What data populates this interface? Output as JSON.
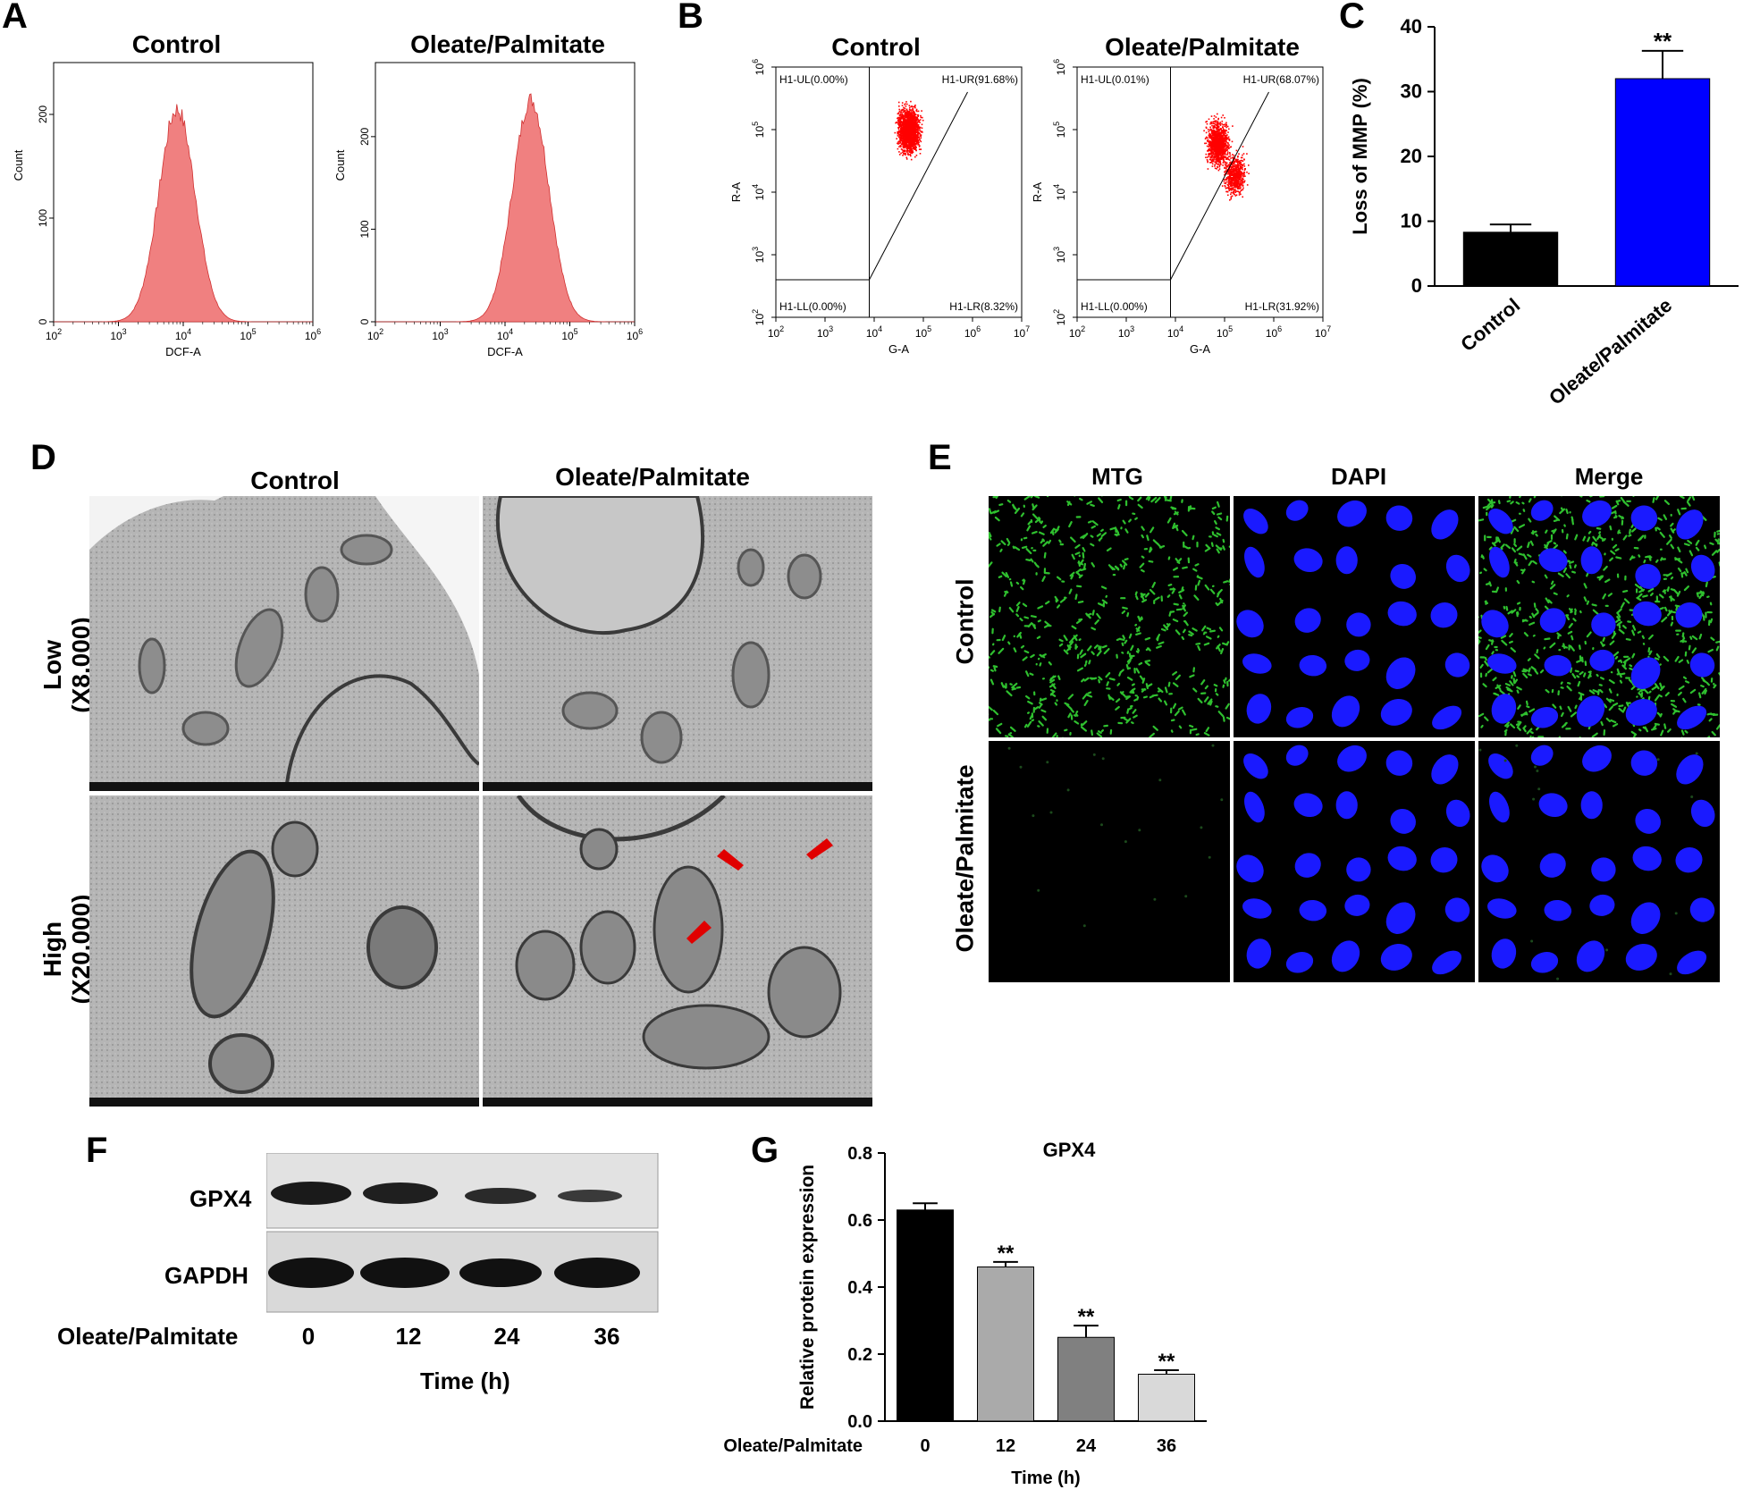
{
  "panels": {
    "A": {
      "label": "A",
      "plots": [
        {
          "title": "Control",
          "xlabel": "DCF-A",
          "ylabel": "Count"
        },
        {
          "title": "Oleate/Palmitate",
          "xlabel": "DCF-A",
          "ylabel": "Count"
        }
      ]
    },
    "B": {
      "label": "B",
      "plots": [
        {
          "title": "Control",
          "xlabel": "G-A",
          "ylabel": "R-A",
          "ul": "H1-UL(0.00%)",
          "ur": "H1-UR(91.68%)",
          "ll": "H1-LL(0.00%)",
          "lr": "H1-LR(8.32%)"
        },
        {
          "title": "Oleate/Palmitate",
          "xlabel": "G-A",
          "ylabel": "R-A",
          "ul": "H1-UL(0.01%)",
          "ur": "H1-UR(68.07%)",
          "ll": "H1-LL(0.00%)",
          "lr": "H1-LR(31.92%)"
        }
      ]
    },
    "C": {
      "label": "C"
    },
    "D": {
      "label": "D",
      "col_titles": [
        "Control",
        "Oleate/Palmitate"
      ],
      "row_titles": [
        [
          "Low",
          "(X8,000)"
        ],
        [
          "High",
          "(X20,000)"
        ]
      ]
    },
    "E": {
      "label": "E",
      "col_titles": [
        "MTG",
        "DAPI",
        "Merge"
      ],
      "row_titles": [
        "Control",
        "Oleate/Palmitate"
      ]
    },
    "F": {
      "label": "F",
      "bands": [
        "GPX4",
        "GAPDH"
      ],
      "treatment": "Oleate/Palmitate",
      "lanes": [
        "0",
        "12",
        "24",
        "36"
      ],
      "xlabel": "Time (h)"
    },
    "G": {
      "label": "G"
    }
  },
  "chart_data": [
    {
      "id": "A-control",
      "type": "area",
      "title": "Control",
      "xlabel": "DCF-A",
      "ylabel": "Count",
      "xscale": "log",
      "xlim": [
        100,
        1000000
      ],
      "ylim": [
        0,
        250
      ],
      "xticks": [
        "10^2",
        "10^3",
        "10^4",
        "10^5",
        "10^6"
      ],
      "yticks": [
        0,
        100,
        200
      ],
      "series": [
        {
          "peak_x": 8000,
          "peak_y": 205,
          "fill": "#f08080"
        }
      ]
    },
    {
      "id": "A-oleate",
      "type": "area",
      "title": "Oleate/Palmitate",
      "xlabel": "DCF-A",
      "ylabel": "Count",
      "xscale": "log",
      "xlim": [
        100,
        1000000
      ],
      "ylim": [
        0,
        280
      ],
      "xticks": [
        "10^2",
        "10^3",
        "10^4",
        "10^5",
        "10^6"
      ],
      "yticks": [
        0,
        100,
        200
      ],
      "series": [
        {
          "peak_x": 25000,
          "peak_y": 240,
          "fill": "#f08080"
        }
      ]
    },
    {
      "id": "B-control",
      "type": "scatter",
      "title": "Control",
      "xlabel": "G-A",
      "ylabel": "R-A",
      "xscale": "log",
      "yscale": "log",
      "xlim": [
        100,
        10000000
      ],
      "ylim": [
        100,
        1000000
      ],
      "xticks": [
        "10^2",
        "10^3",
        "10^4",
        "10^5",
        "10^6",
        "10^7"
      ],
      "yticks": [
        "10^2",
        "10^3",
        "10^4",
        "10^5",
        "10^6"
      ],
      "quadrants": {
        "UL": "0.00%",
        "UR": "91.68%",
        "LL": "0.00%",
        "LR": "8.32%"
      },
      "cluster": {
        "center_x": 50000,
        "center_y": 100000,
        "color": "#ff0000"
      }
    },
    {
      "id": "B-oleate",
      "type": "scatter",
      "title": "Oleate/Palmitate",
      "xlabel": "G-A",
      "ylabel": "R-A",
      "xscale": "log",
      "yscale": "log",
      "xlim": [
        100,
        10000000
      ],
      "ylim": [
        100,
        1000000
      ],
      "xticks": [
        "10^2",
        "10^3",
        "10^4",
        "10^5",
        "10^6",
        "10^7"
      ],
      "yticks": [
        "10^2",
        "10^3",
        "10^4",
        "10^5",
        "10^6"
      ],
      "quadrants": {
        "UL": "0.01%",
        "UR": "68.07%",
        "LL": "0.00%",
        "LR": "31.92%"
      },
      "cluster": {
        "center_x": 70000,
        "center_y": 60000,
        "color": "#ff0000"
      }
    },
    {
      "id": "C",
      "type": "bar",
      "categories": [
        "Control",
        "Oleate/Palmitate"
      ],
      "values": [
        8.3,
        32
      ],
      "errors": [
        1.2,
        4.3
      ],
      "colors": [
        "#000000",
        "#0000ff"
      ],
      "significance": [
        "",
        "**"
      ],
      "ylabel": "Loss of MMP (%)",
      "ylim": [
        0,
        40
      ],
      "yticks": [
        0,
        10,
        20,
        30,
        40
      ]
    },
    {
      "id": "G",
      "type": "bar",
      "title": "GPX4",
      "categories": [
        "0",
        "12",
        "24",
        "36"
      ],
      "values": [
        0.63,
        0.46,
        0.25,
        0.14
      ],
      "errors": [
        0.02,
        0.015,
        0.035,
        0.012
      ],
      "colors": [
        "#000000",
        "#aaaaaa",
        "#808080",
        "#d9d9d9"
      ],
      "significance": [
        "",
        "**",
        "**",
        "**"
      ],
      "ylabel": "Relative protein expression",
      "xlabel": "Time (h)",
      "treatment_label": "Oleate/Palmitate",
      "ylim": [
        0,
        0.8
      ],
      "yticks": [
        "0.0",
        "0.2",
        "0.4",
        "0.6",
        "0.8"
      ]
    }
  ]
}
